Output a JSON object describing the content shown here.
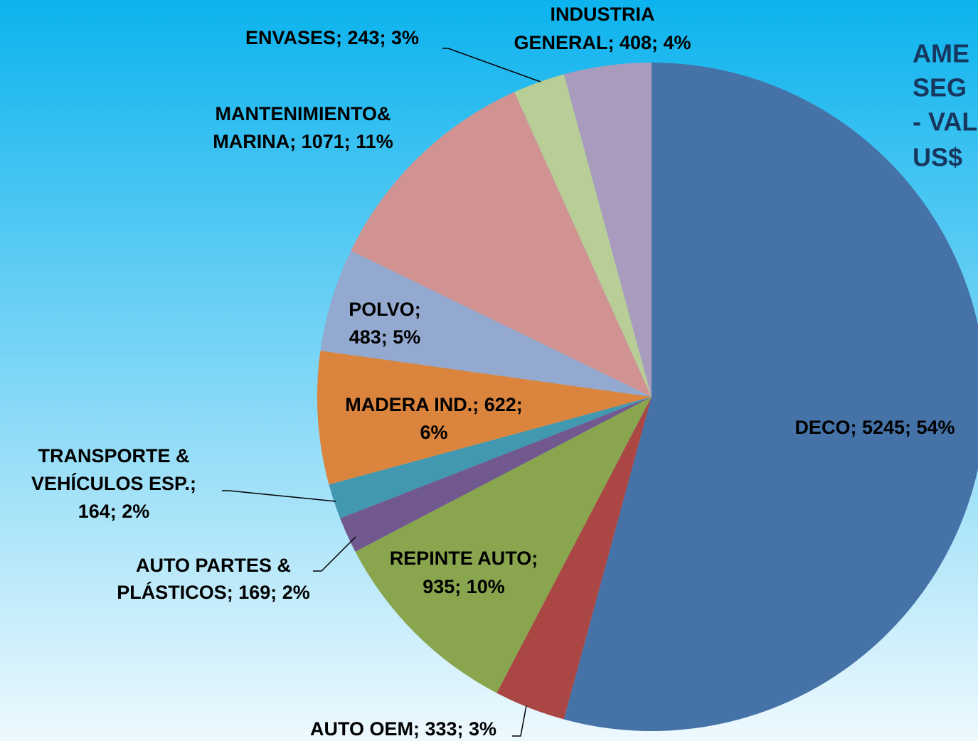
{
  "chart_data": {
    "type": "pie",
    "title_lines": [
      "AME",
      "SEG",
      "- VAL",
      "US$"
    ],
    "values": [
      5245,
      333,
      935,
      169,
      164,
      622,
      483,
      1071,
      243,
      408
    ],
    "value_labels": [
      [
        "DECO; 5245; 54%"
      ],
      [
        "AUTO OEM; 333; 3%"
      ],
      [
        "REPINTE AUTO;",
        "935; 10%"
      ],
      [
        "AUTO PARTES &",
        "PLÁSTICOS; 169; 2%"
      ],
      [
        "TRANSPORTE &",
        "VEHÍCULOS ESP.;",
        "164; 2%"
      ],
      [
        "MADERA IND.; 622;",
        "6%"
      ],
      [
        "POLVO;",
        "483; 5%"
      ],
      [
        "MANTENIMIENTO&",
        "MARINA; 1071; 11%"
      ],
      [
        "ENVASES; 243; 3%"
      ],
      [
        "INDUSTRIA",
        "GENERAL; 408; 4%"
      ]
    ],
    "colors": [
      "#4572a7",
      "#aa4643",
      "#89a54e",
      "#71588f",
      "#4198af",
      "#db843d",
      "#93a9cf",
      "#d19392",
      "#b9cd96",
      "#a99bbd"
    ]
  }
}
